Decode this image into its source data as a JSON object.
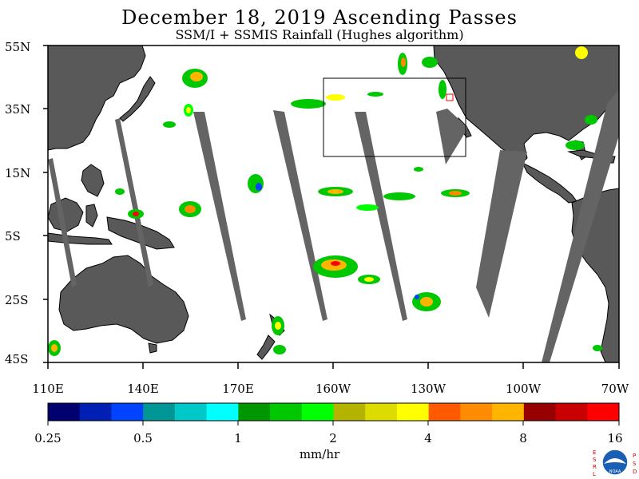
{
  "header": {
    "title": "December 18, 2019  Ascending Passes",
    "subtitle": "SSM/I + SSMIS Rainfall (Hughes algorithm)"
  },
  "lat_ticks": [
    "55N",
    "35N",
    "15N",
    "5S",
    "25S",
    "45S"
  ],
  "lon_ticks": [
    "110E",
    "140E",
    "170E",
    "160W",
    "130W",
    "100W",
    "70W"
  ],
  "colorbar": {
    "ticks": [
      "0.25",
      "0.5",
      "1",
      "2",
      "4",
      "8",
      "16"
    ],
    "units": "mm/hr",
    "colors": [
      "#00006e",
      "#0020b4",
      "#0044ff",
      "#009696",
      "#00c8c8",
      "#00ffff",
      "#009600",
      "#00c800",
      "#00ff00",
      "#b4b400",
      "#dcdc00",
      "#ffff00",
      "#ff5a00",
      "#ff8c00",
      "#ffb400",
      "#960000",
      "#c80000",
      "#ff0000"
    ]
  },
  "map_colors": {
    "land": "#595959",
    "ocean": "#ffffff",
    "no_data": "#646464"
  },
  "logo": {
    "left_letters": "ESRL",
    "right_letters": "PSD",
    "center": "NOAA"
  }
}
